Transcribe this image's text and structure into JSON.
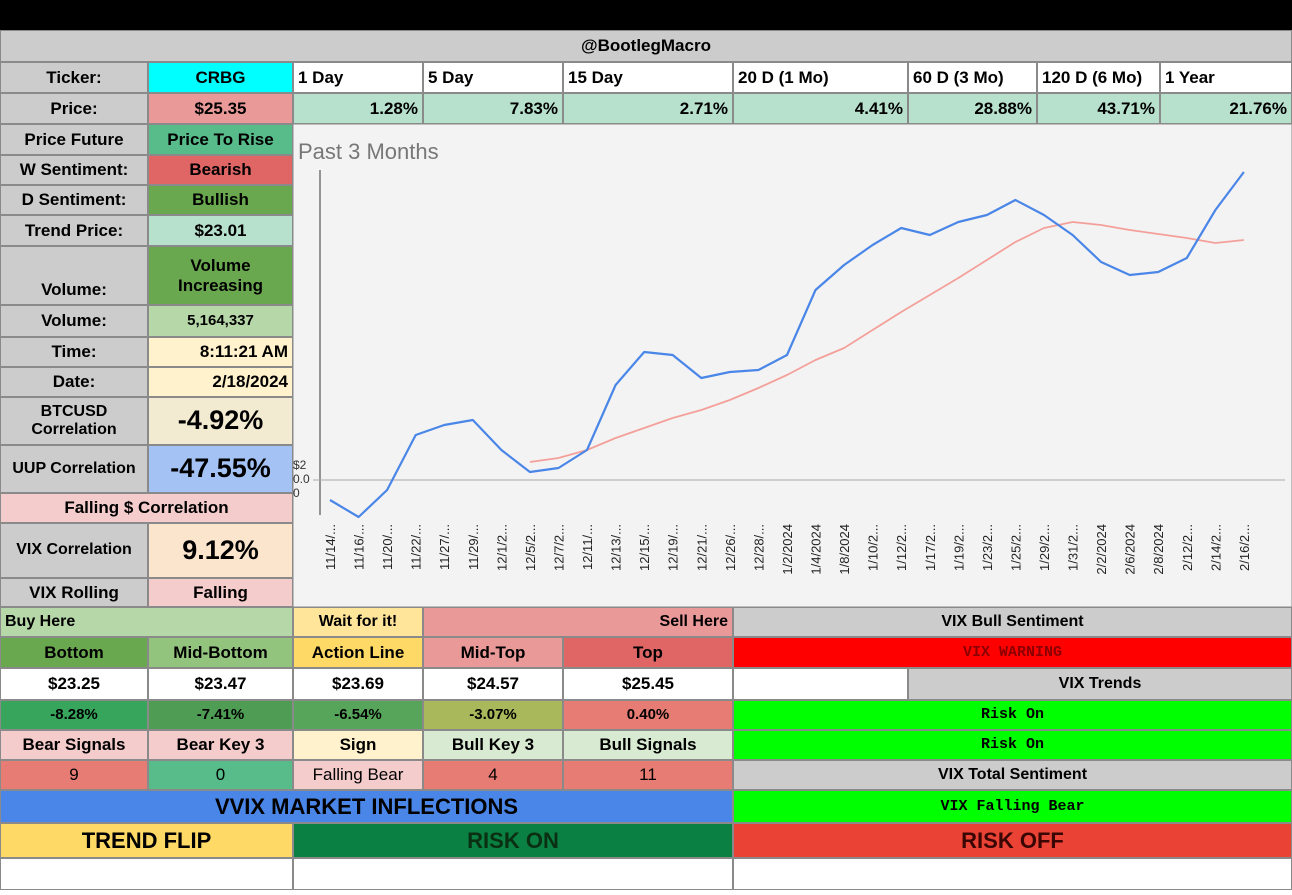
{
  "header": {
    "title": "@BootlegMacro"
  },
  "ticker": {
    "label": "Ticker:",
    "value": "CRBG"
  },
  "periods": [
    "1 Day",
    "5 Day",
    "15 Day",
    "20 D (1 Mo)",
    "60 D (3 Mo)",
    "120 D (6 Mo)",
    "1 Year"
  ],
  "price": {
    "label": "Price:",
    "value": "$25.35",
    "changes": [
      "1.28%",
      "7.83%",
      "2.71%",
      "4.41%",
      "28.88%",
      "43.71%",
      "21.76%"
    ]
  },
  "stats": [
    {
      "label": "Price Future",
      "value": "Price To Rise"
    },
    {
      "label": "W Sentiment:",
      "value": "Bearish"
    },
    {
      "label": "D Sentiment:",
      "value": "Bullish"
    },
    {
      "label": "Trend Price:",
      "value": "$23.01"
    },
    {
      "label": "Volume:",
      "value": "Volume Increasing"
    },
    {
      "label": "Volume:",
      "value": "5,164,337"
    },
    {
      "label": "Time:",
      "value": "8:11:21 AM"
    },
    {
      "label": "Date:",
      "value": "2/18/2024"
    },
    {
      "label": "BTCUSD Correlation",
      "value": "-4.92%"
    },
    {
      "label": "UUP Correlation",
      "value": "-47.55%"
    },
    {
      "label": "Falling $ Correlation"
    },
    {
      "label": "VIX Correlation",
      "value": "9.12%"
    },
    {
      "label": "VIX Rolling",
      "value": "Falling"
    }
  ],
  "zones": {
    "buy": "Buy Here",
    "wait": "Wait for it!",
    "sell": "Sell Here"
  },
  "levels": {
    "names": [
      "Bottom",
      "Mid-Bottom",
      "Action Line",
      "Mid-Top",
      "Top"
    ],
    "prices": [
      "$23.25",
      "$23.47",
      "$23.69",
      "$24.57",
      "$25.45"
    ],
    "changes": [
      "-8.28%",
      "-7.41%",
      "-6.54%",
      "-3.07%",
      "0.40%"
    ]
  },
  "signals": {
    "names": [
      "Bear Signals",
      "Bear Key 3",
      "Sign",
      "Bull Key 3",
      "Bull Signals"
    ],
    "values": [
      "9",
      "0",
      "Falling Bear",
      "4",
      "11"
    ]
  },
  "vix": {
    "bull_title": "VIX Bull Sentiment",
    "warning": "VIX WARNING",
    "trends_title": "VIX Trends",
    "trends": [
      "Risk On",
      "Risk On"
    ],
    "total_title": "VIX Total Sentiment",
    "total": "VIX Falling Bear"
  },
  "vvix": {
    "title": "VVIX MARKET INFLECTIONS",
    "trend_flip": "TREND FLIP",
    "risk_on": "RISK ON",
    "risk_off": "RISK OFF"
  },
  "chart_data": {
    "type": "line",
    "title": "Past 3 Months",
    "categories": [
      "11/14/...",
      "11/16/...",
      "11/20/...",
      "11/22/...",
      "11/27/...",
      "11/29/...",
      "12/1/2...",
      "12/5/2...",
      "12/7/2...",
      "12/11/...",
      "12/13/...",
      "12/15/...",
      "12/19/...",
      "12/21/...",
      "12/26/...",
      "12/28/...",
      "1/2/2024",
      "1/4/2024",
      "1/8/2024",
      "1/10/2...",
      "1/12/2...",
      "1/17/2...",
      "1/19/2...",
      "1/23/2...",
      "1/25/2...",
      "1/29/2...",
      "1/31/2...",
      "2/2/2024",
      "2/6/2024",
      "2/8/2024",
      "2/12/2...",
      "2/14/2...",
      "2/16/2..."
    ],
    "series": [
      {
        "color": "#4a86e8",
        "values": [
          18.8,
          18.46,
          19.0,
          20.1,
          20.3,
          20.4,
          19.8,
          19.36,
          19.44,
          19.8,
          21.1,
          21.76,
          21.7,
          21.24,
          21.36,
          21.4,
          21.7,
          23.0,
          23.5,
          23.9,
          24.24,
          24.1,
          24.36,
          24.5,
          24.8,
          24.5,
          24.1,
          23.56,
          23.3,
          23.36,
          23.64,
          24.6,
          25.36
        ]
      },
      {
        "color": "#f4a09a",
        "values": [
          null,
          null,
          null,
          null,
          null,
          null,
          null,
          19.56,
          19.64,
          19.8,
          20.04,
          20.24,
          20.44,
          20.6,
          20.8,
          21.04,
          21.3,
          21.6,
          21.84,
          22.2,
          22.56,
          22.9,
          23.24,
          23.6,
          23.96,
          24.24,
          24.36,
          24.3,
          24.2,
          24.12,
          24.04,
          23.94,
          24.0
        ]
      }
    ],
    "ylim": [
      18.4,
      25.6
    ],
    "ytick_labels": [
      "$2",
      "0.0",
      "0"
    ]
  }
}
